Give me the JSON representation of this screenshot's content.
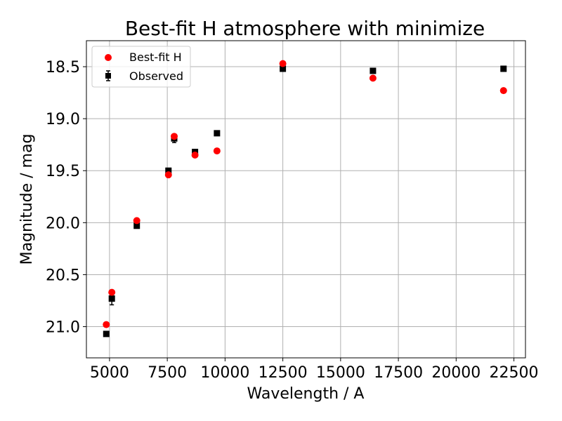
{
  "chart_data": {
    "type": "scatter",
    "title": "Best-fit H atmosphere with minimize",
    "xlabel": "Wavelength / A",
    "ylabel": "Magnitude / mag",
    "xlim": [
      4000,
      23000
    ],
    "ylim": [
      21.3,
      18.25
    ],
    "y_inverted": true,
    "grid": true,
    "legend_position": "top-left",
    "x_ticks": [
      5000,
      7500,
      10000,
      12500,
      15000,
      17500,
      20000,
      22500
    ],
    "x_tick_labels": [
      "5000",
      "7500",
      "10000",
      "12500",
      "15000",
      "17500",
      "20000",
      "22500"
    ],
    "y_ticks": [
      18.5,
      19.0,
      19.5,
      20.0,
      20.5,
      21.0
    ],
    "y_tick_labels": [
      "18.5",
      "19.0",
      "19.5",
      "20.0",
      "20.5",
      "21.0"
    ],
    "series": [
      {
        "name": "Best-fit H",
        "marker": "circle",
        "color": "#ff0000",
        "x": [
          4860,
          5100,
          6180,
          7550,
          7800,
          8700,
          9650,
          12500,
          16400,
          22050
        ],
        "y": [
          20.98,
          20.67,
          19.98,
          19.54,
          19.17,
          19.35,
          19.31,
          18.47,
          18.61,
          18.73
        ]
      },
      {
        "name": "Observed",
        "marker": "square",
        "color": "#000000",
        "x": [
          4860,
          5100,
          6180,
          7550,
          7800,
          8700,
          9650,
          12500,
          16400,
          22050
        ],
        "y": [
          21.07,
          20.73,
          20.03,
          19.5,
          19.19,
          19.32,
          19.14,
          18.52,
          18.54,
          18.52
        ],
        "yerr": [
          0.0,
          0.06,
          0.0,
          0.0,
          0.04,
          0.0,
          0.0,
          0.02,
          0.0,
          0.025
        ]
      }
    ]
  }
}
